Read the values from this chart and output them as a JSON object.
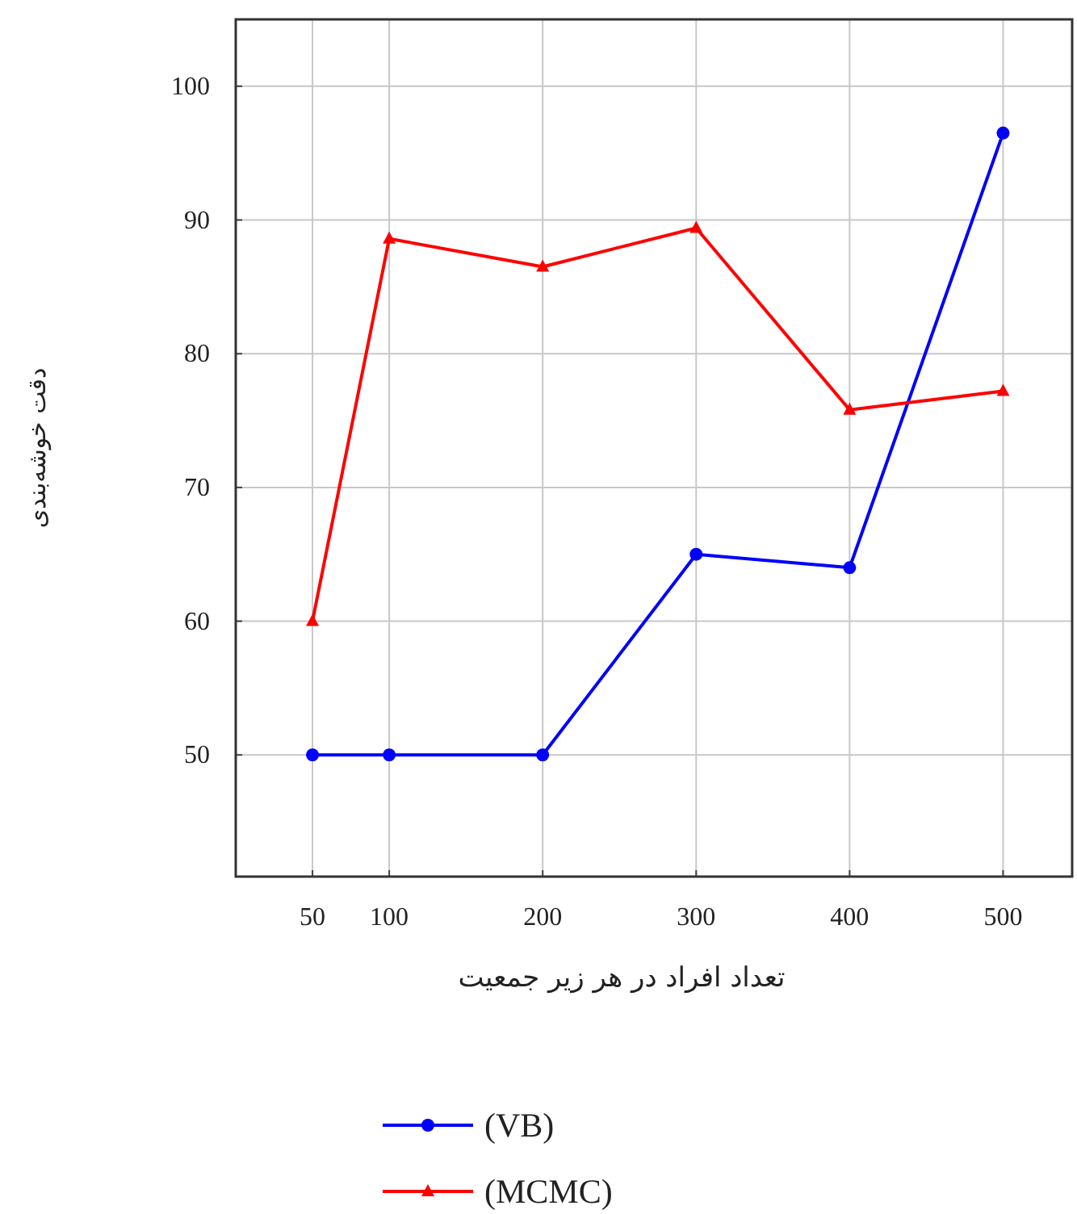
{
  "chart_data": {
    "type": "line",
    "xlabel": "تعداد افراد در هر زیر جمعیت",
    "ylabel": "دقت خوشه‌بندی",
    "x": [
      50,
      100,
      200,
      300,
      400,
      500
    ],
    "series": [
      {
        "name": "(VB)",
        "color": "#0000ff",
        "marker": "circle",
        "values": [
          50,
          50,
          50,
          65,
          64,
          96.5
        ]
      },
      {
        "name": "(MCMC)",
        "color": "#ff0000",
        "marker": "triangle",
        "values": [
          60,
          88.6,
          86.5,
          89.4,
          75.8,
          77.2
        ]
      }
    ],
    "xlim": [
      0,
      545
    ],
    "ylim": [
      40.9,
      105
    ],
    "xticks": [
      50,
      100,
      200,
      300,
      400,
      500
    ],
    "yticks": [
      50,
      60,
      70,
      80,
      90,
      100
    ],
    "grid": true,
    "legend": "bottom",
    "line_style": "solid"
  }
}
